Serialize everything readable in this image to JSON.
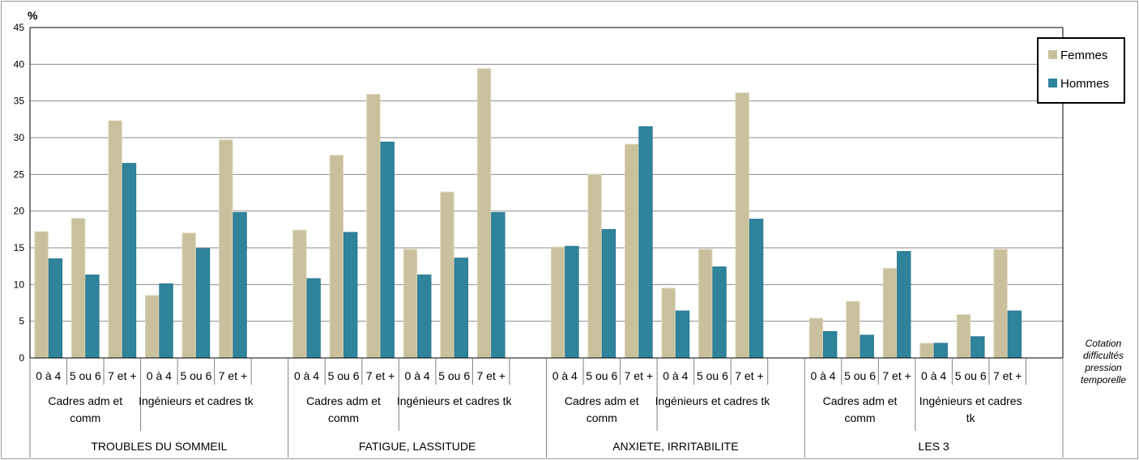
{
  "chart_data": {
    "type": "bar",
    "ylabel": "%",
    "ylim": [
      0,
      45
    ],
    "yticks": [
      0,
      5,
      10,
      15,
      20,
      25,
      30,
      35,
      40,
      45
    ],
    "grid": true,
    "legend_position": "top-right",
    "x_axis_note": [
      "Cotation",
      "difficultés",
      "pression",
      "temporelle"
    ],
    "colors": {
      "Femmes": "#c9c19d",
      "Hommes": "#2f849c"
    },
    "levels": [
      "0 à 4",
      "5 ou 6",
      "7 et +"
    ],
    "groups": [
      {
        "label": "TROUBLES DU SOMMEIL",
        "subgroups": [
          {
            "label": [
              "Cadres adm et",
              "comm"
            ]
          },
          {
            "label": [
              "Ingénieurs et cadres tk"
            ]
          }
        ]
      },
      {
        "label": "FATIGUE, LASSITUDE",
        "subgroups": [
          {
            "label": [
              "Cadres adm et",
              "comm"
            ]
          },
          {
            "label": [
              "Ingénieurs et cadres tk"
            ]
          }
        ]
      },
      {
        "label": "ANXIETE, IRRITABILITE",
        "subgroups": [
          {
            "label": [
              "Cadres adm et",
              "comm"
            ]
          },
          {
            "label": [
              "Ingénieurs et cadres tk"
            ]
          }
        ]
      },
      {
        "label": "LES 3",
        "subgroups": [
          {
            "label": [
              "Cadres adm et",
              "comm"
            ]
          },
          {
            "label": [
              "Ingénieurs et cadres",
              "tk"
            ]
          }
        ]
      }
    ],
    "series": [
      {
        "name": "Femmes",
        "values": [
          17.2,
          19.0,
          32.3,
          8.5,
          17.0,
          29.7,
          17.4,
          27.6,
          35.9,
          14.8,
          22.6,
          39.4,
          15.1,
          25.0,
          29.1,
          9.5,
          14.8,
          36.1,
          5.4,
          7.7,
          12.2,
          2.0,
          5.9,
          14.8
        ]
      },
      {
        "name": "Hommes",
        "values": [
          13.5,
          11.3,
          26.5,
          10.1,
          14.9,
          19.8,
          10.8,
          17.1,
          29.4,
          11.3,
          13.6,
          19.8,
          15.2,
          17.5,
          31.5,
          6.4,
          12.4,
          18.9,
          3.6,
          3.1,
          14.5,
          2.0,
          2.9,
          6.4
        ]
      }
    ]
  }
}
